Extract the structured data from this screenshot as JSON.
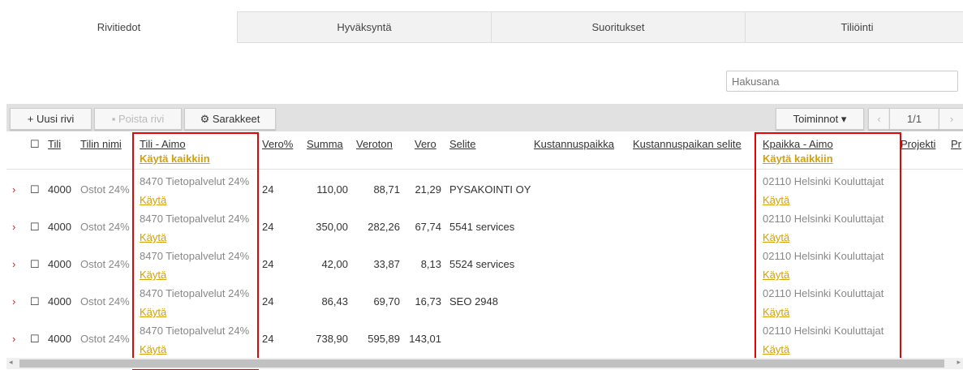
{
  "tabs": [
    "Rivitiedot",
    "Hyväksyntä",
    "Suoritukset",
    "Tiliöinti"
  ],
  "search": {
    "placeholder": "Hakusana",
    "value": ""
  },
  "toolbar": {
    "new_row": "+  Uusi rivi",
    "delete_row": "Poista rivi",
    "columns": "Sarakkeet",
    "actions": "Toiminnot ▾",
    "prev": "‹",
    "page": "1/1",
    "next": "›"
  },
  "columns": {
    "tili": "Tili",
    "tilin_nimi": "Tilin nimi",
    "tili_aimo": "Tili - Aimo",
    "apply_all": "Käytä kaikkiin",
    "vero_pct": "Vero%",
    "summa": "Summa",
    "veroton": "Veroton",
    "vero": "Vero",
    "selite": "Selite",
    "kustannuspaikka": "Kustannuspaikka",
    "kp_selite": "Kustannuspaikan selite",
    "kpaikka_aimo": "Kpaikka - Aimo",
    "kp_apply_all": "Käytä kaikkiin",
    "projekti": "Projekti",
    "pr": "Pr"
  },
  "apply_label": "Käytä",
  "rows": [
    {
      "tili": "4000",
      "nimi": "Ostot 24%",
      "aimo": "8470 Tietopalvelut 24%",
      "vero_pct": "24",
      "summa": "110,00",
      "veroton": "88,71",
      "vero": "21,29",
      "selite": "PYSAKOINTI OY",
      "kpaikka": "02110 Helsinki Kouluttajat"
    },
    {
      "tili": "4000",
      "nimi": "Ostot 24%",
      "aimo": "8470 Tietopalvelut 24%",
      "vero_pct": "24",
      "summa": "350,00",
      "veroton": "282,26",
      "vero": "67,74",
      "selite": "5541 services",
      "kpaikka": "02110 Helsinki Kouluttajat"
    },
    {
      "tili": "4000",
      "nimi": "Ostot 24%",
      "aimo": "8470 Tietopalvelut 24%",
      "vero_pct": "24",
      "summa": "42,00",
      "veroton": "33,87",
      "vero": "8,13",
      "selite": "5524 services",
      "kpaikka": "02110 Helsinki Kouluttajat"
    },
    {
      "tili": "4000",
      "nimi": "Ostot 24%",
      "aimo": "8470 Tietopalvelut 24%",
      "vero_pct": "24",
      "summa": "86,43",
      "veroton": "69,70",
      "vero": "16,73",
      "selite": "SEO 2948",
      "kpaikka": "02110 Helsinki Kouluttajat"
    },
    {
      "tili": "4000",
      "nimi": "Ostot 24%",
      "aimo": "8470 Tietopalvelut 24%",
      "vero_pct": "24",
      "summa": "738,90",
      "veroton": "595,89",
      "vero": "143,01",
      "selite": "",
      "kpaikka": "02110 Helsinki Kouluttajat"
    }
  ],
  "colors": {
    "accent": "#d4a00b",
    "highlight": "#e00000"
  }
}
